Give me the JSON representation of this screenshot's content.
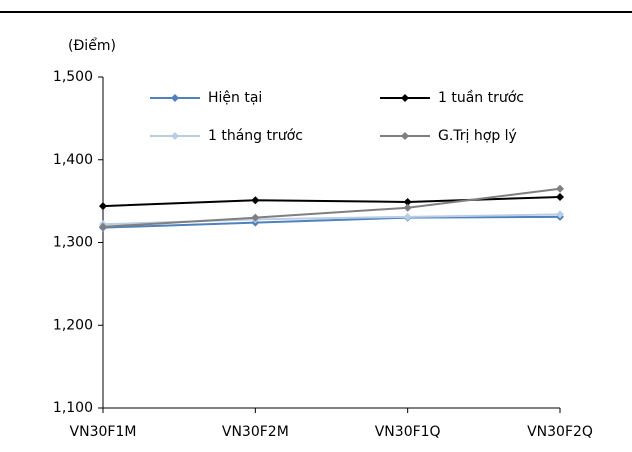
{
  "chart_data": {
    "type": "line",
    "y_unit_label": "(Điểm)",
    "categories": [
      "VN30F1M",
      "VN30F2M",
      "VN30F1Q",
      "VN30F2Q"
    ],
    "series": [
      {
        "name": "Hiện tại",
        "color": "#4f81bd",
        "values": [
          1318,
          1324,
          1330,
          1331
        ]
      },
      {
        "name": "1 tuần trước",
        "color": "#000000",
        "values": [
          1344,
          1351,
          1349,
          1355
        ]
      },
      {
        "name": "1 tháng trước",
        "color": "#b9cde5",
        "values": [
          1322,
          1328,
          1331,
          1334
        ]
      },
      {
        "name": "G.Trị hợp lý",
        "color": "#7f7f7f",
        "values": [
          1319,
          1330,
          1342,
          1365
        ]
      }
    ],
    "ylim": [
      1100,
      1500
    ],
    "yticks": [
      {
        "value": 1100,
        "label": "1,100"
      },
      {
        "value": 1200,
        "label": "1,200"
      },
      {
        "value": 1300,
        "label": "1,300"
      },
      {
        "value": 1400,
        "label": "1,400"
      },
      {
        "value": 1500,
        "label": "1,500"
      }
    ],
    "grid": false,
    "legend": "top"
  }
}
